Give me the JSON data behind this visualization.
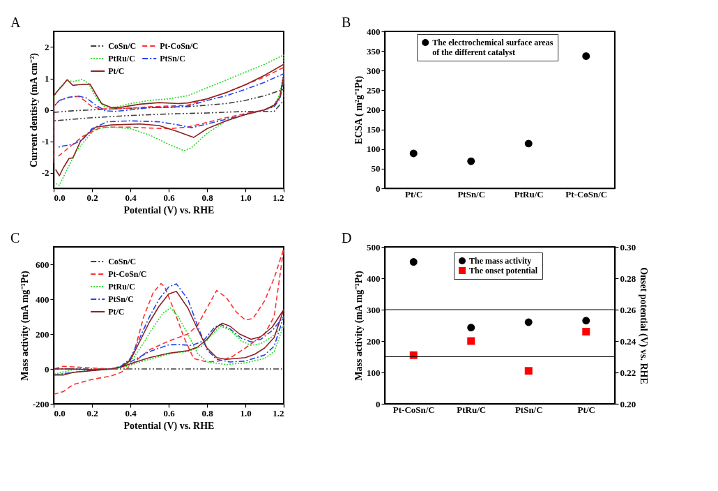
{
  "chart_data": [
    {
      "type": "line",
      "annotations": [
        "A"
      ],
      "xlabel": "Potential (V) vs. RHE",
      "ylabel": "Current dentisty (mA cm⁻²)",
      "xlim": [
        0,
        1.2
      ],
      "ylim": [
        -2.5,
        2.5
      ],
      "xticks": [
        {
          "value": 0,
          "label": "0.0"
        },
        {
          "value": 0.2,
          "label": "0.2"
        },
        {
          "value": 0.4,
          "label": "0.4"
        },
        {
          "value": 0.6,
          "label": "0.6"
        },
        {
          "value": 0.8,
          "label": "0.8"
        },
        {
          "value": 1,
          "label": "1.0"
        },
        {
          "value": 1.2,
          "label": "1.2"
        }
      ],
      "yticks": [
        -2,
        -1,
        0,
        1,
        2
      ],
      "legend": "top left",
      "series": [
        {
          "name": "CoSn/C",
          "color": "#404040",
          "line_style": "dashdotdot",
          "x": [
            0,
            0.1,
            0.3,
            0.5,
            0.7,
            0.9,
            1.0,
            1.1,
            1.2,
            1.2,
            1.15,
            1.0,
            0.8,
            0.6,
            0.4,
            0.2,
            0
          ],
          "values": [
            -0.08,
            -0.03,
            0.03,
            0.07,
            0.1,
            0.2,
            0.3,
            0.45,
            0.65,
            0.3,
            -0.05,
            -0.05,
            -0.1,
            -0.13,
            -0.18,
            -0.25,
            -0.35
          ]
        },
        {
          "name": "Pt-CoSn/C",
          "color": "#ff3030",
          "line_style": "dashed",
          "x": [
            0,
            0,
            0.03,
            0.08,
            0.13,
            0.16,
            0.2,
            0.25,
            0.3,
            0.4,
            0.5,
            0.6,
            0.7,
            0.8,
            0.9,
            1.0,
            1.1,
            1.2,
            1.2,
            1.18,
            1.15,
            1.1,
            1.0,
            0.9,
            0.8,
            0.7,
            0.6,
            0.5,
            0.4,
            0.25,
            0.15,
            0.1,
            0.05,
            0.02
          ],
          "values": [
            -1.55,
            0.1,
            0.3,
            0.4,
            0.43,
            0.3,
            0.1,
            0.03,
            0.03,
            0.05,
            0.1,
            0.12,
            0.15,
            0.35,
            0.55,
            0.8,
            1.05,
            1.35,
            1.0,
            0.4,
            0.12,
            0,
            -0.12,
            -0.25,
            -0.4,
            -0.55,
            -0.6,
            -0.58,
            -0.55,
            -0.55,
            -0.85,
            -1.1,
            -1.35,
            -1.5
          ]
        },
        {
          "name": "PtRu/C",
          "color": "#22dd22",
          "line_style": "dotted",
          "x": [
            0,
            0.03,
            0.07,
            0.1,
            0.15,
            0.18,
            0.22,
            0.26,
            0.3,
            0.4,
            0.5,
            0.6,
            0.7,
            0.8,
            0.9,
            1.0,
            1.1,
            1.2,
            1.2,
            1.18,
            1.15,
            1.1,
            1.0,
            0.9,
            0.8,
            0.72,
            0.68,
            0.6,
            0.5,
            0.4,
            0.3,
            0.22,
            0.18,
            0.12,
            0.07,
            0.03,
            0.01
          ],
          "values": [
            0.4,
            0.7,
            0.95,
            0.9,
            0.97,
            0.85,
            0.4,
            0.12,
            0.05,
            0.2,
            0.3,
            0.35,
            0.45,
            0.7,
            0.95,
            1.2,
            1.45,
            1.75,
            1.2,
            0.5,
            0.15,
            0,
            -0.15,
            -0.35,
            -0.75,
            -1.2,
            -1.3,
            -1.1,
            -0.8,
            -0.6,
            -0.55,
            -0.6,
            -0.85,
            -1.3,
            -1.9,
            -2.4,
            -2.35
          ]
        },
        {
          "name": "PtSn/C",
          "color": "#2244ee",
          "line_style": "dashdot",
          "x": [
            0,
            0,
            0.03,
            0.08,
            0.13,
            0.17,
            0.22,
            0.27,
            0.32,
            0.4,
            0.5,
            0.6,
            0.7,
            0.8,
            0.9,
            1.0,
            1.1,
            1.2,
            1.2,
            1.18,
            1.15,
            1.1,
            1.0,
            0.9,
            0.8,
            0.72,
            0.65,
            0.55,
            0.4,
            0.28,
            0.2,
            0.15,
            0.1,
            0.05,
            0.02
          ],
          "values": [
            -1.15,
            0.1,
            0.3,
            0.4,
            0.44,
            0.38,
            0.15,
            -0.03,
            -0.05,
            0,
            0.07,
            0.08,
            0.12,
            0.3,
            0.45,
            0.65,
            0.88,
            1.15,
            0.9,
            0.35,
            0.1,
            0,
            -0.15,
            -0.3,
            -0.45,
            -0.57,
            -0.48,
            -0.38,
            -0.35,
            -0.38,
            -0.6,
            -0.95,
            -1.1,
            -1.15,
            -1.2
          ]
        },
        {
          "name": "Pt/C",
          "color": "#8b2323",
          "line_style": "solid",
          "x": [
            0,
            0,
            0.02,
            0.05,
            0.07,
            0.1,
            0.13,
            0.19,
            0.22,
            0.25,
            0.3,
            0.35,
            0.45,
            0.55,
            0.65,
            0.7,
            0.8,
            0.9,
            1.0,
            1.1,
            1.2,
            1.2,
            1.18,
            1.15,
            1.1,
            1.0,
            0.9,
            0.8,
            0.73,
            0.65,
            0.55,
            0.45,
            0.3,
            0.22,
            0.18,
            0.14,
            0.1,
            0.08,
            0.05,
            0.03,
            0.01
          ],
          "values": [
            -1.7,
            0.45,
            0.6,
            0.8,
            0.96,
            0.78,
            0.8,
            0.82,
            0.5,
            0.2,
            0.07,
            0.08,
            0.18,
            0.23,
            0.2,
            0.22,
            0.35,
            0.55,
            0.8,
            1.1,
            1.45,
            1.1,
            0.4,
            0.15,
            0,
            -0.15,
            -0.35,
            -0.6,
            -0.88,
            -0.7,
            -0.5,
            -0.45,
            -0.48,
            -0.55,
            -0.75,
            -1.0,
            -1.53,
            -1.55,
            -1.85,
            -2.1,
            -1.9
          ]
        }
      ]
    },
    {
      "type": "scatter",
      "annotations": [
        "B"
      ],
      "ylabel": "ECSA ( m²g⁻¹Pt)",
      "categories": [
        "Pt/C",
        "PtSn/C",
        "PtRu/C",
        "Pt-CoSn/C"
      ],
      "ylim": [
        0,
        400
      ],
      "yticks": [
        0,
        50,
        100,
        150,
        200,
        250,
        300,
        350,
        400
      ],
      "legend": "top left",
      "series": [
        {
          "name": "The electrochemical surface areas of the different catalyst",
          "color": "#000000",
          "marker": "circle",
          "values": [
            89,
            69,
            114,
            337
          ]
        }
      ]
    },
    {
      "type": "line",
      "annotations": [
        "C"
      ],
      "xlabel": "Potential (V) vs. RHE",
      "ylabel": "Mass activity (mA mg⁻¹Pt)",
      "xlim": [
        0,
        1.2
      ],
      "ylim": [
        -200,
        700
      ],
      "xticks": [
        {
          "value": 0,
          "label": "0.0"
        },
        {
          "value": 0.2,
          "label": "0.2"
        },
        {
          "value": 0.4,
          "label": "0.4"
        },
        {
          "value": 0.6,
          "label": "0.6"
        },
        {
          "value": 0.8,
          "label": "0.8"
        },
        {
          "value": 1,
          "label": "1.0"
        },
        {
          "value": 1.2,
          "label": "1.2"
        }
      ],
      "yticks": [
        -200,
        0,
        200,
        400,
        600
      ],
      "legend": "top left",
      "series": [
        {
          "name": "CoSn/C",
          "color": "#404040",
          "line_style": "dashdotdot",
          "x": [
            0,
            1.2
          ],
          "values": [
            0,
            0
          ]
        },
        {
          "name": "Pt-CoSn/C",
          "color": "#ff3030",
          "line_style": "dashed",
          "x": [
            0,
            0.05,
            0.1,
            0.2,
            0.3,
            0.35,
            0.38,
            0.42,
            0.5,
            0.6,
            0.7,
            0.75,
            0.8,
            0.85,
            0.9,
            0.95,
            1.0,
            1.04,
            1.1,
            1.15,
            1.2,
            1.15,
            1.1,
            1.0,
            0.93,
            0.86,
            0.8,
            0.73,
            0.68,
            0.63,
            0.58,
            0.56,
            0.52,
            0.47,
            0.42,
            0.38,
            0.3,
            0.2,
            0.1,
            0.05,
            0
          ],
          "values": [
            -145,
            -130,
            -90,
            -60,
            -40,
            -20,
            0,
            40,
            110,
            160,
            200,
            250,
            350,
            450,
            410,
            330,
            280,
            290,
            390,
            520,
            690,
            300,
            200,
            120,
            70,
            45,
            40,
            60,
            180,
            330,
            470,
            490,
            440,
            300,
            100,
            20,
            0,
            5,
            12,
            15,
            0
          ]
        },
        {
          "name": "PtRu/C",
          "color": "#22dd22",
          "line_style": "dotted",
          "x": [
            0,
            0.1,
            0.2,
            0.3,
            0.37,
            0.45,
            0.55,
            0.62,
            0.7,
            0.77,
            0.83,
            0.87,
            0.92,
            0.98,
            1.03,
            1.08,
            1.14,
            1.2,
            1.15,
            1.1,
            1.0,
            0.9,
            0.8,
            0.75,
            0.7,
            0.65,
            0.61,
            0.57,
            0.52,
            0.47,
            0.42,
            0.37,
            0.3,
            0.2,
            0.1,
            0
          ],
          "values": [
            -35,
            -20,
            -8,
            0,
            10,
            40,
            70,
            90,
            100,
            130,
            200,
            245,
            225,
            160,
            135,
            145,
            185,
            250,
            100,
            60,
            35,
            25,
            40,
            90,
            200,
            300,
            350,
            320,
            240,
            150,
            70,
            20,
            0,
            -5,
            -5,
            -30
          ]
        },
        {
          "name": "PtSn/C",
          "color": "#2244ee",
          "line_style": "dashdot",
          "x": [
            0,
            0.1,
            0.2,
            0.3,
            0.35,
            0.4,
            0.5,
            0.6,
            0.65,
            0.72,
            0.78,
            0.84,
            0.87,
            0.92,
            0.98,
            1.03,
            1.08,
            1.14,
            1.2,
            1.15,
            1.1,
            1.0,
            0.92,
            0.85,
            0.8,
            0.75,
            0.7,
            0.64,
            0.6,
            0.55,
            0.5,
            0.45,
            0.4,
            0.35,
            0.3,
            0.2,
            0.1,
            0
          ],
          "values": [
            -35,
            -20,
            -8,
            0,
            15,
            40,
            100,
            138,
            140,
            135,
            160,
            240,
            255,
            230,
            175,
            155,
            170,
            220,
            300,
            130,
            80,
            45,
            40,
            55,
            110,
            250,
            400,
            488,
            470,
            400,
            300,
            180,
            60,
            15,
            0,
            -5,
            0,
            0
          ]
        },
        {
          "name": "Pt/C",
          "color": "#8b2323",
          "line_style": "solid",
          "x": [
            0,
            0.05,
            0.1,
            0.2,
            0.3,
            0.35,
            0.4,
            0.5,
            0.6,
            0.7,
            0.75,
            0.8,
            0.85,
            0.88,
            0.92,
            0.97,
            1.03,
            1.08,
            1.14,
            1.2,
            1.15,
            1.1,
            1.05,
            1.0,
            0.9,
            0.85,
            0.8,
            0.75,
            0.7,
            0.64,
            0.6,
            0.55,
            0.5,
            0.45,
            0.4,
            0.35,
            0.3,
            0.2,
            0.1,
            0
          ],
          "values": [
            -35,
            -35,
            -20,
            -10,
            0,
            10,
            30,
            65,
            90,
            105,
            125,
            170,
            240,
            262,
            245,
            200,
            170,
            185,
            240,
            340,
            180,
            120,
            85,
            65,
            55,
            65,
            120,
            230,
            350,
            445,
            430,
            360,
            270,
            160,
            50,
            10,
            0,
            -5,
            0,
            0
          ]
        }
      ]
    },
    {
      "type": "scatter",
      "annotations": [
        "D"
      ],
      "ylabel": "Mass activity (mA mg⁻¹Pt)",
      "y2label": "Onset potential (V) vs. RHE",
      "categories": [
        "Pt-CoSn/C",
        "PtRu/C",
        "PtSn/C",
        "Pt/C"
      ],
      "ylim": [
        0,
        500
      ],
      "yticks": [
        0,
        100,
        200,
        300,
        400,
        500
      ],
      "y2lim": [
        0.2,
        0.3
      ],
      "y2ticks": [
        {
          "value": 0.2,
          "label": "0.20"
        },
        {
          "value": 0.22,
          "label": "0.22"
        },
        {
          "value": 0.24,
          "label": "0.24"
        },
        {
          "value": 0.26,
          "label": "0.26"
        },
        {
          "value": 0.28,
          "label": "0.28"
        },
        {
          "value": 0.3,
          "label": "0.30"
        }
      ],
      "legend": "top",
      "ref_lines": [
        {
          "axis": "y",
          "value": 300,
          "color": "#000000"
        },
        {
          "axis": "y2",
          "value": 0.23,
          "color": "#000000"
        }
      ],
      "series": [
        {
          "name": "The mass activity",
          "color": "#000000",
          "marker": "circle",
          "values": [
            452,
            243,
            260,
            265
          ]
        },
        {
          "name": "The onset potential",
          "color": "#ff0000",
          "marker": "square",
          "axis": "y2",
          "values": [
            0.231,
            0.24,
            0.221,
            0.246
          ]
        }
      ]
    }
  ]
}
